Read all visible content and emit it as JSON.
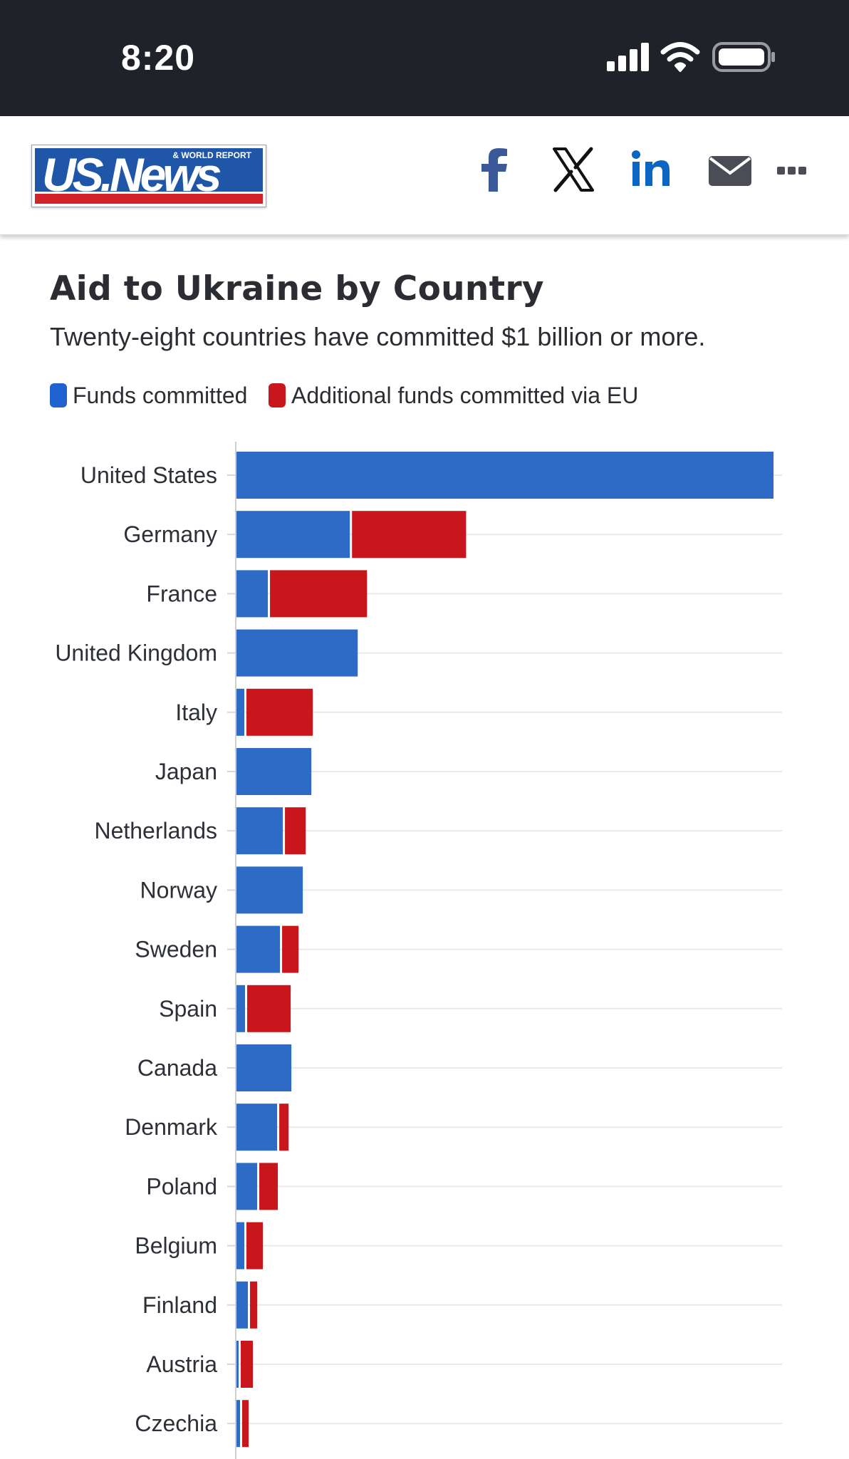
{
  "status_bar": {
    "time": "8:20",
    "icons": [
      "signal-icon",
      "wifi-icon",
      "battery-icon"
    ]
  },
  "header": {
    "logo": {
      "main_text": "US.News",
      "sub_text": "& WORLD REPORT"
    },
    "share_icons": [
      "facebook-icon",
      "x-icon",
      "linkedin-icon",
      "email-icon",
      "more-icon"
    ]
  },
  "colors": {
    "funds": "#2d6bc7",
    "eu": "#c8161c",
    "grid": "#e9e9e9",
    "status_bg": "#1f2229"
  },
  "chart_data": {
    "type": "bar",
    "orientation": "horizontal",
    "stacked": true,
    "title": "Aid to Ukraine by Country",
    "subtitle": "Twenty-eight countries have committed $1 billion or more.",
    "legend": [
      "Funds committed",
      "Additional funds committed via EU"
    ],
    "categories": [
      "United States",
      "Germany",
      "France",
      "United Kingdom",
      "Italy",
      "Japan",
      "Netherlands",
      "Norway",
      "Sweden",
      "Spain",
      "Canada",
      "Denmark",
      "Poland",
      "Belgium",
      "Finland",
      "Austria",
      "Czechia"
    ],
    "series": [
      {
        "name": "Funds committed",
        "values": [
          75.4,
          16.0,
          4.5,
          17.1,
          1.2,
          10.6,
          6.6,
          9.4,
          6.2,
          1.3,
          7.8,
          5.8,
          3.0,
          1.2,
          1.7,
          0.4,
          0.6
        ]
      },
      {
        "name": "Additional funds committed via EU",
        "values": [
          0.0,
          16.3,
          13.9,
          0.0,
          9.6,
          0.0,
          3.2,
          0.0,
          2.6,
          6.4,
          0.0,
          1.6,
          2.9,
          2.6,
          1.3,
          2.0,
          1.2
        ]
      }
    ],
    "xlim": [
      0,
      75.4
    ],
    "grid": true
  }
}
